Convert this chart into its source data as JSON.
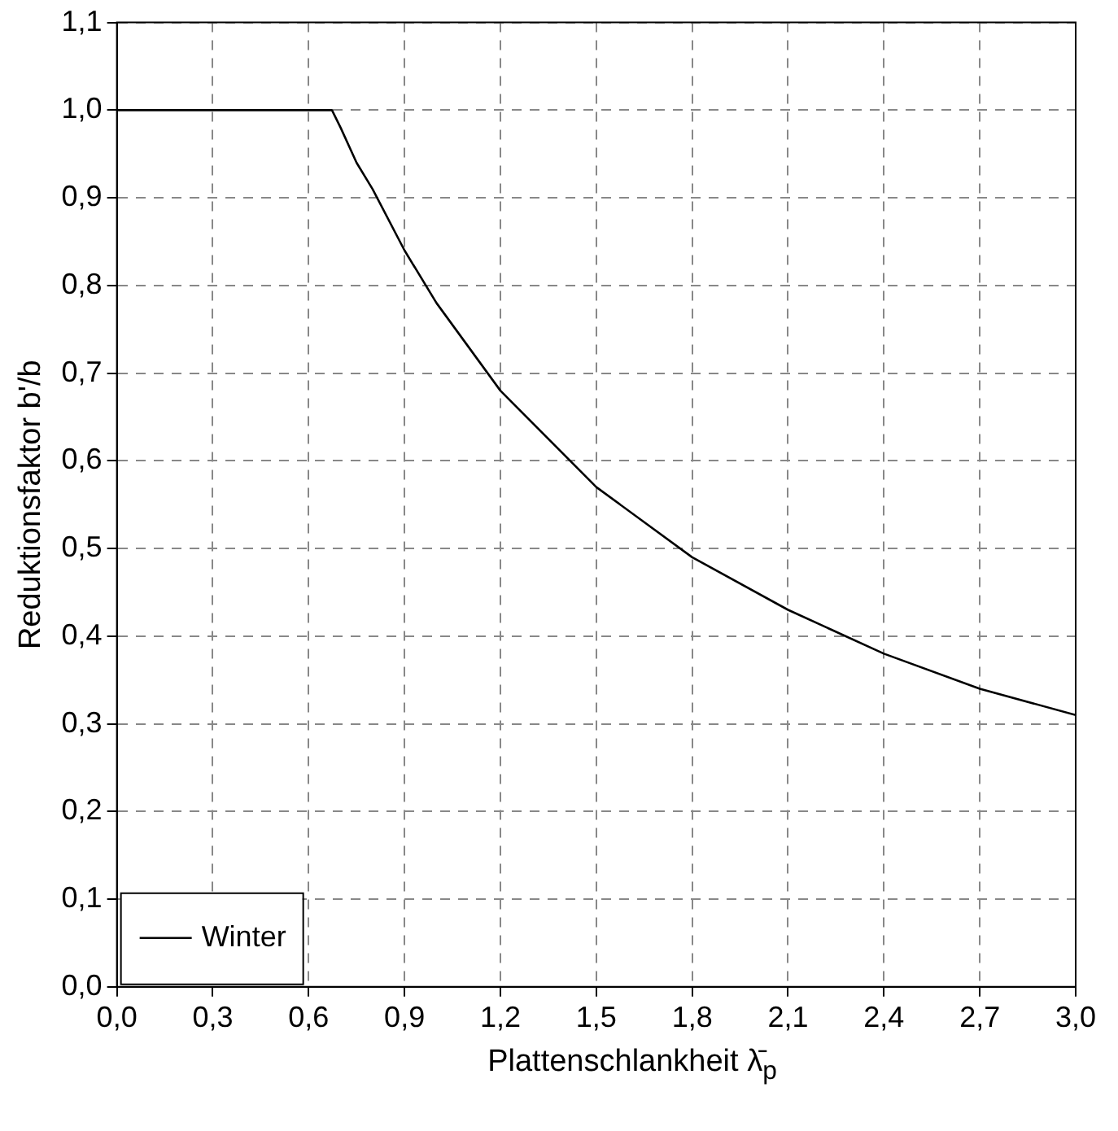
{
  "chart_data": {
    "type": "line",
    "xlabel": "Plattenschlankheit λ̄$_{p}$",
    "ylabel": "Reduktionsfaktor b'/b",
    "series": [
      {
        "name": "Winter",
        "color": "#000000",
        "x": [
          0,
          0.673,
          0.7,
          0.75,
          0.8,
          0.9,
          1.0,
          1.2,
          1.5,
          1.8,
          2.1,
          2.4,
          2.7,
          3.0
        ],
        "values": [
          1,
          1,
          0.98,
          0.94,
          0.91,
          0.84,
          0.78,
          0.68,
          0.57,
          0.49,
          0.43,
          0.38,
          0.34,
          0.31
        ]
      }
    ],
    "xlim": [
      0,
      3
    ],
    "xticks": [
      {
        "value": 0,
        "label": "0,0"
      },
      {
        "value": 0.3,
        "label": "0,3"
      },
      {
        "value": 0.6,
        "label": "0,6"
      },
      {
        "value": 0.9,
        "label": "0,9"
      },
      {
        "value": 1.2,
        "label": "1,2"
      },
      {
        "value": 1.5,
        "label": "1,5"
      },
      {
        "value": 1.8,
        "label": "1,8"
      },
      {
        "value": 2.1,
        "label": "2,1"
      },
      {
        "value": 2.4,
        "label": "2,4"
      },
      {
        "value": 2.7,
        "label": "2,7"
      },
      {
        "value": 3.0,
        "label": "3,0"
      }
    ],
    "ylim": [
      0,
      1.1
    ],
    "yticks": [
      {
        "value": 0,
        "label": "0,0"
      },
      {
        "value": 0.1,
        "label": "0,1"
      },
      {
        "value": 0.2,
        "label": "0,2"
      },
      {
        "value": 0.3,
        "label": "0,3"
      },
      {
        "value": 0.4,
        "label": "0,4"
      },
      {
        "value": 0.5,
        "label": "0,5"
      },
      {
        "value": 0.6,
        "label": "0,6"
      },
      {
        "value": 0.7,
        "label": "0,7"
      },
      {
        "value": 0.8,
        "label": "0,8"
      },
      {
        "value": 0.9,
        "label": "0,9"
      },
      {
        "value": 1.0,
        "label": "1,0"
      },
      {
        "value": 1.1,
        "label": "1,1"
      }
    ],
    "grid": true,
    "legend": "bottom left",
    "marker": "none",
    "line_style": "solid"
  }
}
